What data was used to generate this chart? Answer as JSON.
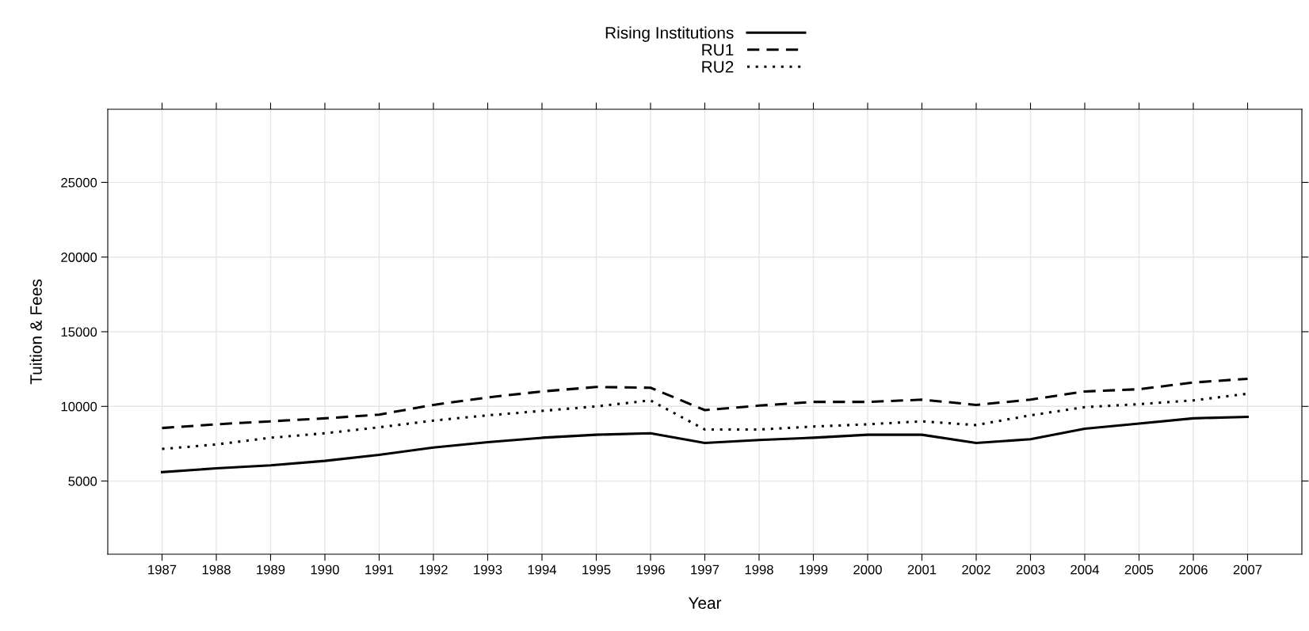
{
  "chart_data": {
    "type": "line",
    "xlabel": "Year",
    "ylabel": "Tuition & Fees",
    "x": [
      1987,
      1988,
      1989,
      1990,
      1991,
      1992,
      1993,
      1994,
      1995,
      1996,
      1997,
      1998,
      1999,
      2000,
      2001,
      2002,
      2003,
      2004,
      2005,
      2006,
      2007
    ],
    "series": [
      {
        "name": "Rising Institutions",
        "color": "#000000",
        "line_style": "solid",
        "values": [
          5600,
          5850,
          6050,
          6350,
          6750,
          7250,
          7600,
          7900,
          8100,
          8200,
          7550,
          7750,
          7900,
          8100,
          8100,
          7550,
          7800,
          8500,
          8850,
          9200,
          9300
        ]
      },
      {
        "name": "RU1",
        "color": "#000000",
        "line_style": "dashed",
        "values": [
          8550,
          8800,
          9000,
          9200,
          9450,
          10100,
          10600,
          11000,
          11300,
          11250,
          9750,
          10050,
          10300,
          10300,
          10450,
          10100,
          10450,
          11000,
          11150,
          11600,
          11850
        ]
      },
      {
        "name": "RU2",
        "color": "#000000",
        "line_style": "dotted",
        "values": [
          7150,
          7450,
          7900,
          8200,
          8600,
          9050,
          9400,
          9700,
          10000,
          10400,
          8450,
          8450,
          8650,
          8800,
          9000,
          8750,
          9400,
          9950,
          10150,
          10400,
          10850
        ]
      }
    ],
    "xlim": [
      1986,
      2008
    ],
    "xticks": [
      1987,
      1988,
      1989,
      1990,
      1991,
      1992,
      1993,
      1994,
      1995,
      1996,
      1997,
      1998,
      1999,
      2000,
      2001,
      2002,
      2003,
      2004,
      2005,
      2006,
      2007
    ],
    "ylim": [
      100,
      29900
    ],
    "yticks": [
      5000,
      10000,
      15000,
      20000,
      25000
    ],
    "grid": true,
    "legend": "top",
    "marker": "none"
  }
}
